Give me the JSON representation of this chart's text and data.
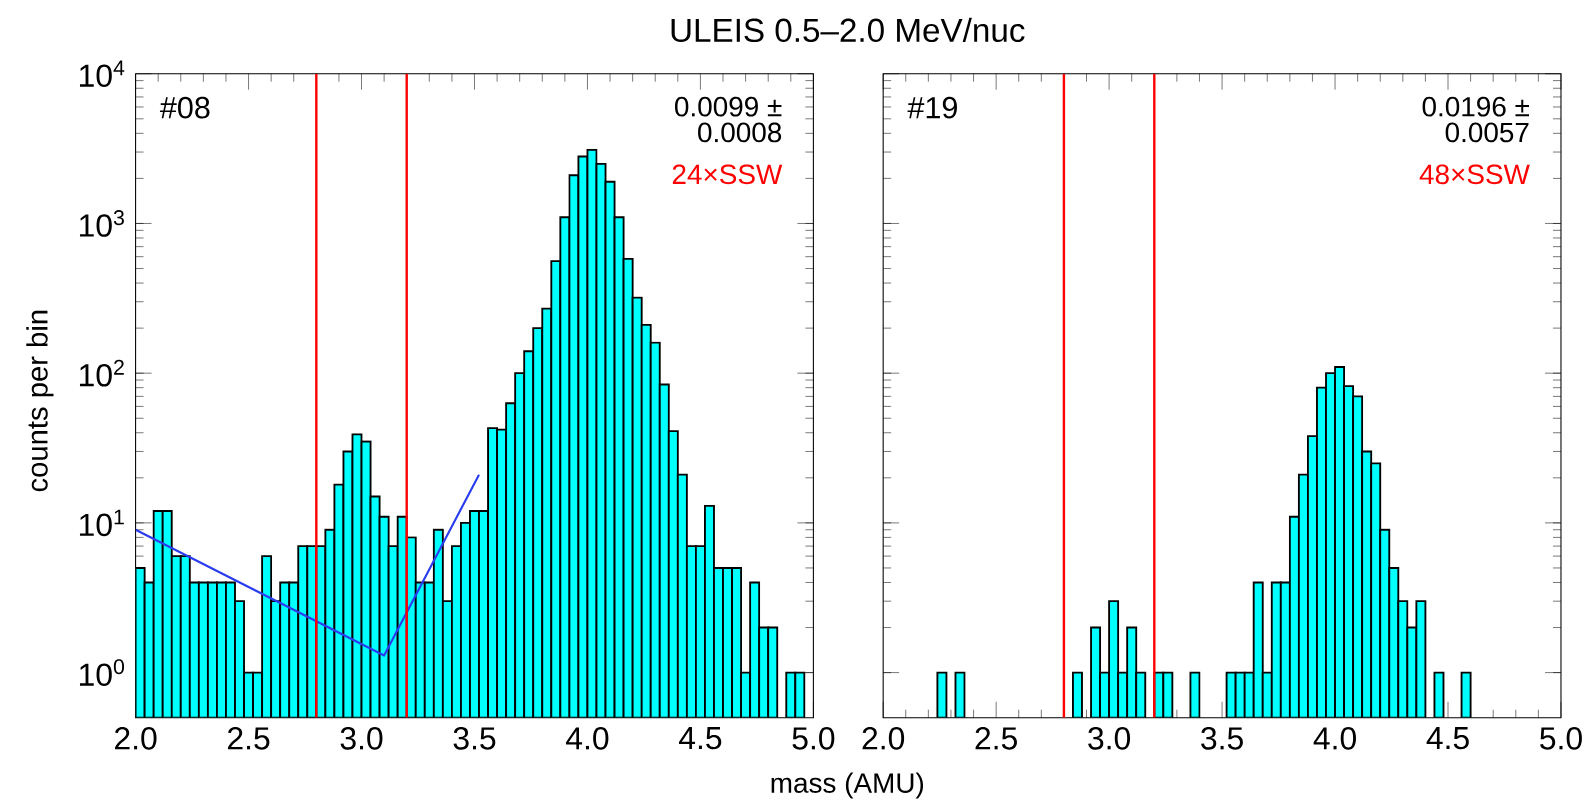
{
  "chart_data": [
    {
      "type": "histogram",
      "title": "ULEIS 0.5–2.0 MeV/nuc",
      "xlabel": "mass (AMU)",
      "ylabel": "counts per bin",
      "annotations": [
        "#08",
        "0.0099 ±",
        "0.0008",
        "24×SSW"
      ],
      "bins": [
        2,
        2.04,
        2.08,
        2.12,
        2.16,
        2.2,
        2.24,
        2.28,
        2.32,
        2.36,
        2.4,
        2.44,
        2.48,
        2.52,
        2.56,
        2.6,
        2.64,
        2.68,
        2.72,
        2.76,
        2.8,
        2.84,
        2.88,
        2.92,
        2.96,
        3,
        3.04,
        3.08,
        3.12,
        3.16,
        3.2,
        3.24,
        3.28,
        3.32,
        3.36,
        3.4,
        3.44,
        3.48,
        3.52,
        3.56,
        3.6,
        3.64,
        3.68,
        3.72,
        3.76,
        3.8,
        3.84,
        3.88,
        3.92,
        3.96,
        4,
        4.04,
        4.08,
        4.12,
        4.16,
        4.2,
        4.24,
        4.28,
        4.32,
        4.36,
        4.4,
        4.44,
        4.48,
        4.52,
        4.56,
        4.6,
        4.64,
        4.68,
        4.72,
        4.76,
        4.8,
        4.84,
        4.88,
        4.92,
        4.96,
        5
      ],
      "series": [
        {
          "type": "histogram",
          "color": "#00ffff",
          "values": [
            5,
            4,
            12,
            12,
            6,
            6,
            4,
            4,
            4,
            4,
            4,
            3,
            1,
            1,
            6,
            3,
            4,
            4,
            7,
            7,
            7,
            9,
            18,
            30,
            39,
            35,
            15,
            11,
            7,
            11,
            8,
            4,
            4,
            9,
            3,
            7,
            10,
            12,
            12,
            43,
            42,
            63,
            100,
            140,
            200,
            270,
            560,
            1100,
            2100,
            2800,
            3100,
            2500,
            1900,
            1100,
            580,
            320,
            210,
            160,
            84,
            41,
            21,
            7,
            7,
            13,
            5,
            5,
            5,
            1,
            4,
            2,
            2,
            null,
            1,
            1,
            null
          ]
        },
        {
          "type": "line",
          "color": "#2a3cf0",
          "x": [
            2.0,
            3.1,
            3.52
          ],
          "values": [
            9,
            1.3,
            21
          ]
        }
      ],
      "ref_lines": [
        {
          "axis": "x",
          "value": 2.8,
          "color": "#ff0000"
        },
        {
          "axis": "x",
          "value": 3.2,
          "color": "#ff0000"
        }
      ],
      "log": "y",
      "xlim": [
        2,
        5
      ],
      "ylim": [
        0.5,
        10000
      ],
      "xticks": [
        {
          "value": 2,
          "label": "2.0"
        },
        {
          "value": 2.5,
          "label": "2.5"
        },
        {
          "value": 3,
          "label": "3.0"
        },
        {
          "value": 3.5,
          "label": "3.5"
        },
        {
          "value": 4,
          "label": "4.0"
        },
        {
          "value": 4.5,
          "label": "4.5"
        },
        {
          "value": 5,
          "label": "5.0"
        }
      ],
      "yticks": [
        {
          "value": 1,
          "label": "10$^{0}$"
        },
        {
          "value": 10,
          "label": "10$^{1}$"
        },
        {
          "value": 100,
          "label": "10$^{2}$"
        },
        {
          "value": 1000,
          "label": "10$^{3}$"
        },
        {
          "value": 10000,
          "label": "10$^{4}$"
        }
      ]
    },
    {
      "type": "histogram",
      "annotations": [
        "#19",
        "0.0196 ±",
        "0.0057",
        "48×SSW"
      ],
      "bins": [
        2,
        2.04,
        2.08,
        2.12,
        2.16,
        2.2,
        2.24,
        2.28,
        2.32,
        2.36,
        2.4,
        2.44,
        2.48,
        2.52,
        2.56,
        2.6,
        2.64,
        2.68,
        2.72,
        2.76,
        2.8,
        2.84,
        2.88,
        2.92,
        2.96,
        3,
        3.04,
        3.08,
        3.12,
        3.16,
        3.2,
        3.24,
        3.28,
        3.32,
        3.36,
        3.4,
        3.44,
        3.48,
        3.52,
        3.56,
        3.6,
        3.64,
        3.68,
        3.72,
        3.76,
        3.8,
        3.84,
        3.88,
        3.92,
        3.96,
        4,
        4.04,
        4.08,
        4.12,
        4.16,
        4.2,
        4.24,
        4.28,
        4.32,
        4.36,
        4.4,
        4.44,
        4.48,
        4.52,
        4.56,
        4.6,
        4.64,
        4.68,
        4.72,
        4.76,
        4.8,
        4.84,
        4.88,
        4.92,
        4.96,
        5
      ],
      "series": [
        {
          "type": "histogram",
          "color": "#00ffff",
          "values": [
            null,
            null,
            null,
            null,
            null,
            null,
            1,
            null,
            1,
            null,
            null,
            null,
            null,
            null,
            null,
            null,
            null,
            null,
            null,
            null,
            null,
            1,
            null,
            2,
            1,
            3,
            1,
            2,
            1,
            null,
            1,
            1,
            null,
            null,
            1,
            null,
            null,
            null,
            1,
            1,
            1,
            4,
            1,
            4,
            4,
            11,
            21,
            38,
            80,
            100,
            110,
            82,
            70,
            30,
            25,
            9,
            5,
            3,
            2,
            3,
            null,
            1,
            null,
            null,
            1,
            null,
            null,
            null,
            null,
            null,
            null,
            null,
            null,
            null,
            null
          ]
        }
      ],
      "ref_lines": [
        {
          "axis": "x",
          "value": 2.8,
          "color": "#ff0000"
        },
        {
          "axis": "x",
          "value": 3.2,
          "color": "#ff0000"
        }
      ],
      "log": "y",
      "tick_labels": "x",
      "xlim": [
        2,
        5
      ],
      "ylim": [
        0.5,
        10000
      ],
      "xticks": [
        {
          "value": 2,
          "label": "2.0"
        },
        {
          "value": 2.5,
          "label": "2.5"
        },
        {
          "value": 3,
          "label": "3.0"
        },
        {
          "value": 3.5,
          "label": "3.5"
        },
        {
          "value": 4,
          "label": "4.0"
        },
        {
          "value": 4.5,
          "label": "4.5"
        },
        {
          "value": 5,
          "label": "5.0"
        }
      ],
      "yticks": [
        1,
        10,
        100,
        1000,
        10000
      ]
    }
  ]
}
